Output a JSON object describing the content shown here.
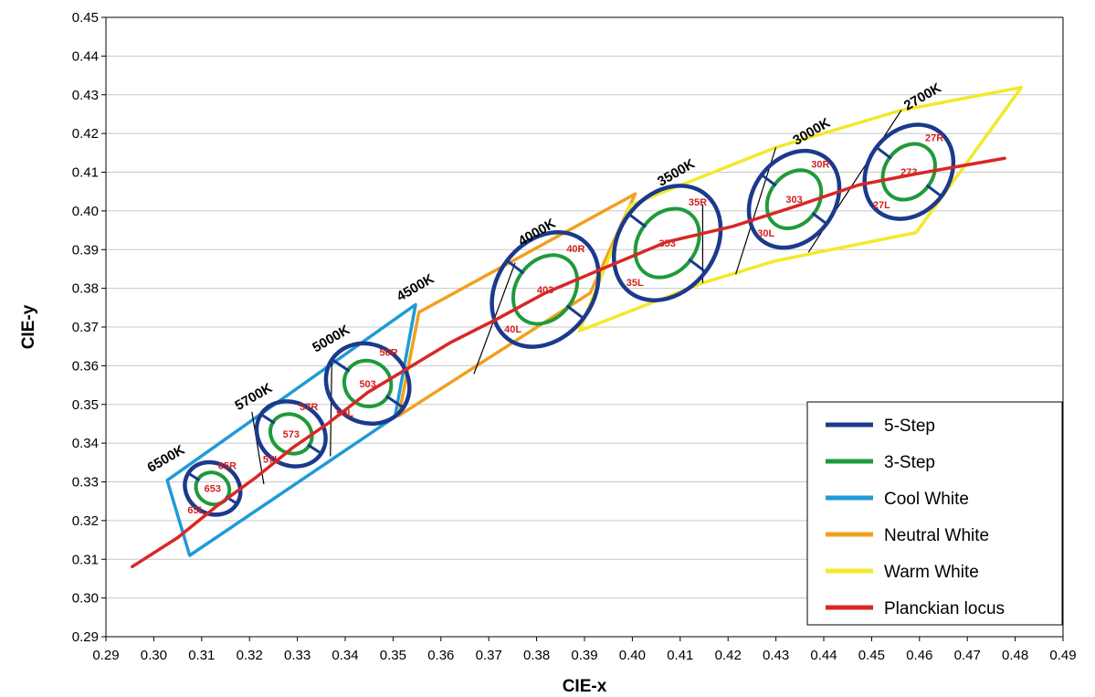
{
  "chart_data": {
    "type": "scatter",
    "xlabel": "CIE-x",
    "ylabel": "CIE-y",
    "xlim": [
      0.29,
      0.49
    ],
    "ylim": [
      0.29,
      0.45
    ],
    "x_ticks": [
      "0.29",
      "0.30",
      "0.31",
      "0.32",
      "0.33",
      "0.34",
      "0.35",
      "0.36",
      "0.37",
      "0.38",
      "0.39",
      "0.40",
      "0.41",
      "0.42",
      "0.43",
      "0.44",
      "0.45",
      "0.46",
      "0.47",
      "0.48",
      "0.49"
    ],
    "y_ticks": [
      "0.29",
      "0.30",
      "0.31",
      "0.32",
      "0.33",
      "0.34",
      "0.35",
      "0.36",
      "0.37",
      "0.38",
      "0.39",
      "0.40",
      "0.41",
      "0.42",
      "0.43",
      "0.44",
      "0.45"
    ],
    "grid": "horizontal",
    "legend_position": "bottom-right",
    "colors": {
      "five_step": "#1b3a8c",
      "three_step": "#1f9a3a",
      "cool_white": "#1e9bd7",
      "neutral_white": "#f0a020",
      "warm_white": "#f2e92a",
      "planckian": "#d72828",
      "bin_text": "#d32020"
    },
    "legend": [
      {
        "label": "5-Step",
        "color": "#1b3a8c"
      },
      {
        "label": "3-Step",
        "color": "#1f9a3a"
      },
      {
        "label": "Cool White",
        "color": "#1e9bd7"
      },
      {
        "label": "Neutral White",
        "color": "#f0a020"
      },
      {
        "label": "Warm White",
        "color": "#f2e92a"
      },
      {
        "label": "Planckian locus",
        "color": "#d72828"
      }
    ],
    "planckian_locus": [
      [
        0.2955,
        0.3081
      ],
      [
        0.305,
        0.3156
      ],
      [
        0.313,
        0.3236
      ],
      [
        0.3215,
        0.3313
      ],
      [
        0.329,
        0.3388
      ],
      [
        0.3364,
        0.3451
      ],
      [
        0.3447,
        0.3531
      ],
      [
        0.3533,
        0.3595
      ],
      [
        0.362,
        0.366
      ],
      [
        0.3716,
        0.372
      ],
      [
        0.3818,
        0.3788
      ],
      [
        0.394,
        0.3852
      ],
      [
        0.4072,
        0.392
      ],
      [
        0.421,
        0.396
      ],
      [
        0.4339,
        0.4011
      ],
      [
        0.4473,
        0.4067
      ],
      [
        0.459,
        0.4095
      ],
      [
        0.4778,
        0.4136
      ]
    ],
    "regions": [
      {
        "name": "Cool White",
        "color": "#1e9bd7",
        "points": [
          [
            0.3028,
            0.3304
          ],
          [
            0.3547,
            0.3758
          ],
          [
            0.3504,
            0.3468
          ],
          [
            0.3075,
            0.311
          ]
        ]
      },
      {
        "name": "Neutral White",
        "color": "#f0a020",
        "points": [
          [
            0.3554,
            0.3738
          ],
          [
            0.4006,
            0.4044
          ],
          [
            0.3912,
            0.3788
          ],
          [
            0.3512,
            0.3471
          ]
        ]
      },
      {
        "name": "Warm White",
        "color": "#f2e92a",
        "points": [
          [
            0.3996,
            0.4015
          ],
          [
            0.43,
            0.4164
          ],
          [
            0.4562,
            0.426
          ],
          [
            0.4813,
            0.4319
          ],
          [
            0.4593,
            0.3944
          ],
          [
            0.4299,
            0.3871
          ],
          [
            0.4147,
            0.3814
          ],
          [
            0.3889,
            0.369
          ]
        ]
      }
    ],
    "dividers": [
      [
        [
          0.3205,
          0.3481
        ],
        [
          0.323,
          0.3294
        ]
      ],
      [
        [
          0.3372,
          0.3612
        ],
        [
          0.3369,
          0.3366
        ]
      ],
      [
        [
          0.3755,
          0.3866
        ],
        [
          0.3669,
          0.3579
        ]
      ],
      [
        [
          0.4147,
          0.4017
        ],
        [
          0.4147,
          0.3814
        ]
      ],
      [
        [
          0.43,
          0.4164
        ],
        [
          0.4216,
          0.3836
        ]
      ],
      [
        [
          0.4562,
          0.426
        ],
        [
          0.4368,
          0.3893
        ]
      ]
    ],
    "ellipses": [
      {
        "name": "653",
        "cx": 0.3123,
        "cy": 0.3283,
        "rx5": 0.006,
        "ry5": 0.0065,
        "rx3": 0.0036,
        "ry3": 0.004,
        "rot": -58,
        "left": "65L",
        "right": "65R"
      },
      {
        "name": "573",
        "cx": 0.3287,
        "cy": 0.3424,
        "rx5": 0.0075,
        "ry5": 0.008,
        "rx3": 0.0045,
        "ry3": 0.0049,
        "rot": -57,
        "left": "57L",
        "right": "57R"
      },
      {
        "name": "503",
        "cx": 0.3447,
        "cy": 0.3554,
        "rx5": 0.009,
        "ry5": 0.01,
        "rx3": 0.005,
        "ry3": 0.0058,
        "rot": -56,
        "left": "50L",
        "right": "50R"
      },
      {
        "name": "403",
        "cx": 0.3818,
        "cy": 0.3797,
        "rx5": 0.01,
        "ry5": 0.016,
        "rx3": 0.006,
        "ry3": 0.0096,
        "rot": -53,
        "left": "40L",
        "right": "40R"
      },
      {
        "name": "353",
        "cx": 0.4073,
        "cy": 0.3917,
        "rx5": 0.01,
        "ry5": 0.016,
        "rx3": 0.006,
        "ry3": 0.0096,
        "rot": -53,
        "left": "35L",
        "right": "35R"
      },
      {
        "name": "303",
        "cx": 0.4338,
        "cy": 0.403,
        "rx5": 0.0085,
        "ry5": 0.0135,
        "rx3": 0.0051,
        "ry3": 0.0081,
        "rot": -53,
        "left": "30L",
        "right": "30R"
      },
      {
        "name": "273",
        "cx": 0.4578,
        "cy": 0.4101,
        "rx5": 0.0085,
        "ry5": 0.013,
        "rx3": 0.005,
        "ry3": 0.0077,
        "rot": -53,
        "left": "27L",
        "right": "27R"
      }
    ],
    "cct_labels": [
      {
        "label": "6500K",
        "x": 0.303,
        "y": 0.335
      },
      {
        "label": "5700K",
        "x": 0.3213,
        "y": 0.351
      },
      {
        "label": "5000K",
        "x": 0.3375,
        "y": 0.366
      },
      {
        "label": "4500K",
        "x": 0.3551,
        "y": 0.3792
      },
      {
        "label": "4000K",
        "x": 0.3805,
        "y": 0.3935
      },
      {
        "label": "3500K",
        "x": 0.4096,
        "y": 0.4089
      },
      {
        "label": "3000K",
        "x": 0.4379,
        "y": 0.4195
      },
      {
        "label": "2700K",
        "x": 0.4611,
        "y": 0.4285
      }
    ]
  }
}
